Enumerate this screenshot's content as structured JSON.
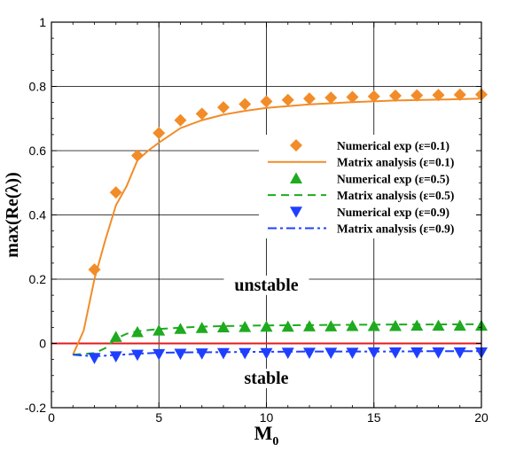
{
  "chart_data": {
    "type": "line",
    "xlabel": "M",
    "xlabel_sub": "0",
    "ylabel": "max(Re(λ))",
    "xlim": [
      0,
      20
    ],
    "ylim": [
      -0.2,
      1
    ],
    "xticks": [
      0,
      5,
      10,
      15,
      20
    ],
    "yticks": [
      -0.2,
      0,
      0.2,
      0.4,
      0.6,
      0.8,
      1
    ],
    "ytick_labels": [
      "-0.2",
      "0",
      "0.2",
      "0.4",
      "0.6",
      "0.8",
      "1"
    ],
    "xtick_labels": [
      "0",
      "5",
      "10",
      "15",
      "20"
    ],
    "grid": true,
    "legend_position": "center-right",
    "reference_line": {
      "y": 0,
      "color": "#e41a1c"
    },
    "series": [
      {
        "name": "Numerical exp  (ε=0.1)",
        "kind": "markers",
        "marker": "diamond",
        "color": "#f28c28",
        "x": [
          2,
          3,
          4,
          5,
          6,
          7,
          8,
          9,
          10,
          11,
          12,
          13,
          14,
          15,
          16,
          17,
          18,
          19,
          20
        ],
        "y": [
          0.23,
          0.47,
          0.585,
          0.655,
          0.695,
          0.715,
          0.735,
          0.745,
          0.753,
          0.758,
          0.762,
          0.765,
          0.767,
          0.769,
          0.771,
          0.772,
          0.773,
          0.774,
          0.775
        ]
      },
      {
        "name": "Matrix analysis (ε=0.1)",
        "kind": "line",
        "dash": "solid",
        "color": "#f28c28",
        "x": [
          1,
          1.5,
          2,
          2.5,
          3,
          3.5,
          4,
          4.5,
          5,
          6,
          7,
          8,
          9,
          10,
          12,
          14,
          16,
          18,
          20
        ],
        "y": [
          -0.035,
          0.04,
          0.2,
          0.32,
          0.43,
          0.49,
          0.57,
          0.6,
          0.625,
          0.67,
          0.695,
          0.712,
          0.724,
          0.733,
          0.744,
          0.751,
          0.756,
          0.759,
          0.762
        ]
      },
      {
        "name": "Numerical exp  (ε=0.5)",
        "kind": "markers",
        "marker": "triangle-up",
        "color": "#1faa1f",
        "x": [
          3,
          4,
          5,
          6,
          7,
          8,
          9,
          10,
          11,
          12,
          13,
          14,
          15,
          16,
          17,
          18,
          19,
          20
        ],
        "y": [
          0.02,
          0.035,
          0.04,
          0.045,
          0.048,
          0.05,
          0.051,
          0.052,
          0.052,
          0.053,
          0.053,
          0.054,
          0.054,
          0.054,
          0.055,
          0.055,
          0.055,
          0.055
        ]
      },
      {
        "name": "Matrix analysis (ε=0.5)",
        "kind": "line",
        "dash": "dashed",
        "color": "#1faa1f",
        "x": [
          1,
          2,
          2.5,
          3,
          3.5,
          4,
          5,
          6,
          7,
          8,
          10,
          12,
          14,
          16,
          18,
          20
        ],
        "y": [
          -0.035,
          -0.03,
          -0.015,
          0.015,
          0.03,
          0.038,
          0.045,
          0.049,
          0.052,
          0.054,
          0.056,
          0.057,
          0.058,
          0.059,
          0.059,
          0.06
        ]
      },
      {
        "name": "Numerical exp  (ε=0.9)",
        "kind": "markers",
        "marker": "triangle-down",
        "color": "#1f3fff",
        "x": [
          2,
          3,
          4,
          5,
          6,
          7,
          8,
          9,
          10,
          11,
          12,
          13,
          14,
          15,
          16,
          17,
          18,
          19,
          20
        ],
        "y": [
          -0.045,
          -0.04,
          -0.035,
          -0.033,
          -0.032,
          -0.031,
          -0.03,
          -0.03,
          -0.03,
          -0.029,
          -0.029,
          -0.029,
          -0.029,
          -0.028,
          -0.028,
          -0.028,
          -0.028,
          -0.028,
          -0.028
        ]
      },
      {
        "name": "Matrix analysis (ε=0.9)",
        "kind": "line",
        "dash": "dashdot",
        "color": "#1f3fff",
        "x": [
          1,
          2,
          3,
          4,
          5,
          6,
          8,
          10,
          12,
          14,
          16,
          18,
          20
        ],
        "y": [
          -0.035,
          -0.04,
          -0.036,
          -0.032,
          -0.029,
          -0.028,
          -0.027,
          -0.026,
          -0.025,
          -0.025,
          -0.025,
          -0.024,
          -0.024
        ]
      }
    ],
    "annotations": [
      {
        "text": "unstable",
        "x": 10,
        "y": 0.17
      },
      {
        "text": "stable",
        "x": 10,
        "y": -0.12
      }
    ]
  }
}
